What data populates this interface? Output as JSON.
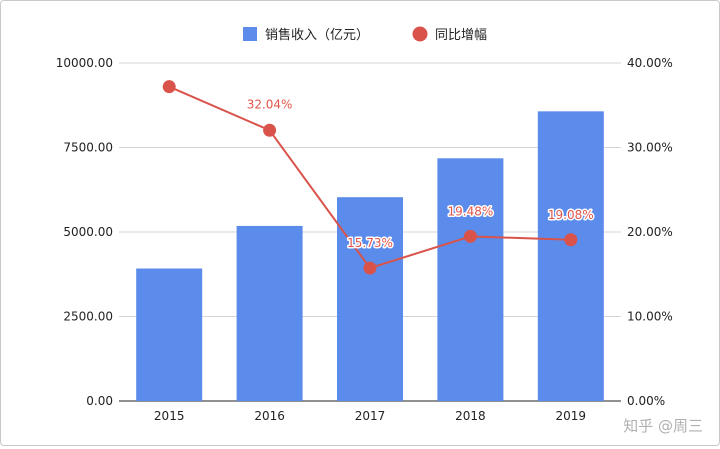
{
  "chart_data": {
    "type": "bar",
    "categories": [
      "2015",
      "2016",
      "2017",
      "2018",
      "2019"
    ],
    "series": [
      {
        "name": "销售收入（亿元）",
        "type": "bar",
        "axis": "left",
        "color": "#5b8ceb",
        "values": [
          3920,
          5180,
          6030,
          7180,
          8570
        ]
      },
      {
        "name": "同比增幅",
        "type": "line",
        "axis": "right",
        "color": "#d9534a",
        "values": [
          37.2,
          32.04,
          15.73,
          19.48,
          19.08
        ],
        "data_labels": [
          "",
          "32.04%",
          "15.73%",
          "19.48%",
          "19.08%"
        ]
      }
    ],
    "y_left": {
      "min": 0,
      "max": 10000,
      "ticks": [
        "0.00",
        "2500.00",
        "5000.00",
        "7500.00",
        "10000.00"
      ]
    },
    "y_right": {
      "min": 0,
      "max": 40,
      "ticks": [
        "0.00%",
        "10.00%",
        "20.00%",
        "30.00%",
        "40.00%"
      ]
    },
    "legend_position": "top-center",
    "grid": true
  },
  "watermark": "知乎 @周三"
}
